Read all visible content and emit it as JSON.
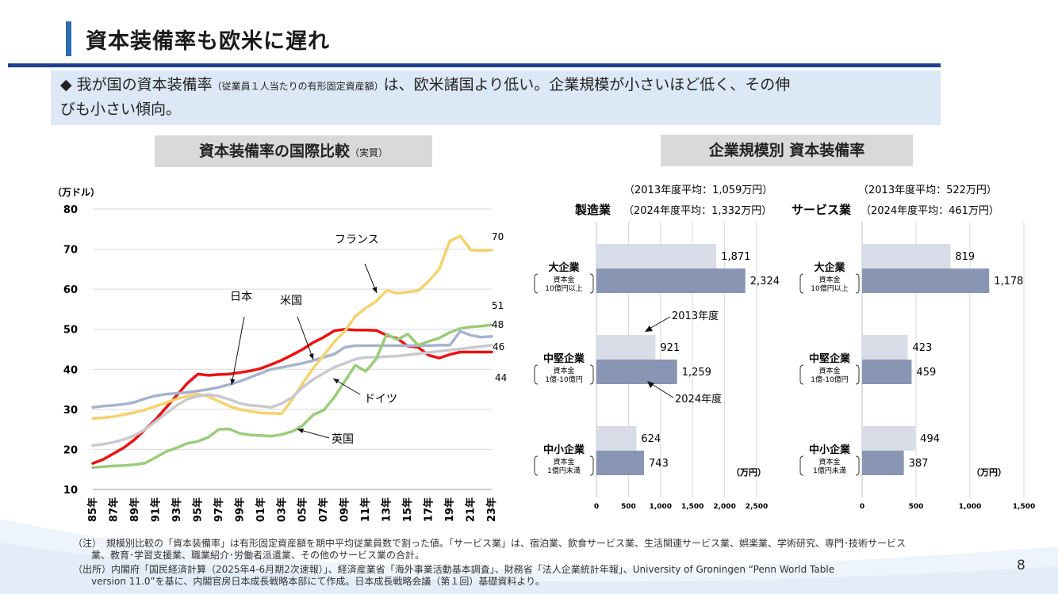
{
  "page": {
    "title": "資本装備率も欧米に遅れ",
    "summary_main": "◆ 我が国の資本装備率",
    "summary_small": "（従業員１人当たりの有形固定資産額）",
    "summary_rest": "は、欧米諸国より低い。企業規模が小さいほど低く、その伸",
    "summary_line2": "びも小さい傾向。",
    "left_subtitle": "資本装備率の国際比較",
    "left_subtitle_small": "（実質）",
    "right_subtitle": "企業規模別 資本装備率",
    "note1": "（注）　規模別比較の「資本装備率」は有形固定資産額を期中平均従業員数で割った値。「サービス業」は、宿泊業、飲食サービス業、生活関連サービス業、娯楽業、学術研究、専門･技術サービス",
    "note2": "業、教育･学習支援業、職業紹介･労働者派遣業、その他のサービス業の合計。",
    "note3": "（出所）内閣府「国民経済計算（2025年4-6月期2次速報）」、経済産業省「海外事業活動基本調査」、財務省「法人企業統計年報」、University of Groningen “Penn World Table",
    "note4": "version 11.0”を基に、内閣官房日本成長戦略本部にて作成。日本成長戦略会議（第１回）基礎資料より。",
    "page_number": "8",
    "colors": {
      "accent": "#1f3f8f",
      "title_bar": "#2b6cb0",
      "summary_bg": "#dce8f6",
      "subtitle_bg": "#d9d9d9"
    }
  },
  "chart_data": [
    {
      "type": "line",
      "ylabel": "（万ドル）",
      "ylim": [
        10,
        80
      ],
      "yticks": [
        10,
        20,
        30,
        40,
        50,
        60,
        70,
        80
      ],
      "x_ticklabels": [
        "85年",
        "87年",
        "89年",
        "91年",
        "93年",
        "95年",
        "97年",
        "99年",
        "01年",
        "03年",
        "05年",
        "07年",
        "09年",
        "11年",
        "13年",
        "15年",
        "17年",
        "19年",
        "21年",
        "23年"
      ],
      "x": [
        1985,
        1986,
        1987,
        1988,
        1989,
        1990,
        1991,
        1992,
        1993,
        1994,
        1995,
        1996,
        1997,
        1998,
        1999,
        2000,
        2001,
        2002,
        2003,
        2004,
        2005,
        2006,
        2007,
        2008,
        2009,
        2010,
        2011,
        2012,
        2013,
        2014,
        2015,
        2016,
        2017,
        2018,
        2019,
        2020,
        2021,
        2022,
        2023
      ],
      "grid": true,
      "series": [
        {
          "name": "日本",
          "color": "#ee1111",
          "end_label": "44",
          "values": [
            16.5,
            17.5,
            19,
            20.5,
            22.5,
            25,
            27.5,
            30.5,
            33.5,
            36.5,
            38.8,
            38.5,
            38.7,
            38.8,
            39.2,
            39.6,
            40.2,
            41.2,
            42.3,
            43.6,
            45,
            46.7,
            48,
            49.6,
            50,
            49.8,
            49.8,
            49.7,
            48.5,
            47.7,
            45.8,
            45.5,
            43.5,
            42.8,
            43.7,
            44.3,
            44.3,
            44.3,
            44.3
          ]
        },
        {
          "name": "米国",
          "color": "#a7b2cf",
          "end_label": "48",
          "values": [
            30.5,
            30.8,
            31,
            31.3,
            31.8,
            32.7,
            33.4,
            33.8,
            34,
            34.2,
            34.6,
            35,
            35.5,
            36.2,
            37,
            38,
            39,
            40,
            40.5,
            41,
            41.5,
            42.2,
            43,
            43.8,
            45.5,
            45.9,
            45.9,
            45.9,
            45.9,
            45.9,
            45.9,
            45.9,
            45.9,
            46,
            46,
            49.5,
            48.5,
            48,
            48.2
          ]
        },
        {
          "name": "フランス",
          "color": "#f5d26e",
          "end_label": "70",
          "values": [
            27.7,
            27.9,
            28.2,
            28.7,
            29.2,
            29.9,
            30.8,
            31.7,
            32.6,
            33.3,
            33.8,
            33.2,
            32,
            30.8,
            30,
            29.5,
            29.1,
            29,
            28.9,
            32.5,
            36.5,
            40.3,
            43.5,
            46.8,
            49.5,
            53.2,
            55.3,
            57,
            59.7,
            59,
            59.3,
            59.6,
            62,
            65,
            72,
            73.3,
            69.8,
            69.6,
            69.8
          ]
        },
        {
          "name": "ドイツ",
          "color": "#c9c9cf",
          "end_label": "46",
          "values": [
            21,
            21.3,
            21.8,
            22.5,
            23.5,
            25,
            27,
            29,
            31,
            32.5,
            33.3,
            33.7,
            33.3,
            32.5,
            31.5,
            31,
            30.8,
            30.5,
            31.5,
            33,
            35.5,
            37.5,
            39,
            40.5,
            41.5,
            42.5,
            43,
            43,
            43.2,
            43.3,
            43.6,
            43.9,
            44.2,
            44.5,
            44.8,
            45.1,
            45.4,
            45.7,
            46
          ]
        },
        {
          "name": "英国",
          "color": "#9acd7a",
          "end_label": "51",
          "values": [
            15.5,
            15.7,
            15.9,
            16,
            16.2,
            16.6,
            18,
            19.5,
            20.4,
            21.5,
            22,
            23,
            25,
            25.1,
            24,
            23.6,
            23.5,
            23.3,
            23.7,
            24.5,
            26,
            28.6,
            29.8,
            33,
            37,
            41,
            39.5,
            42.6,
            48.8,
            47.4,
            48.8,
            46,
            47,
            47.8,
            49.2,
            50.2,
            50.6,
            50.8,
            51.1
          ]
        }
      ],
      "annotations": [
        "フランス",
        "日本",
        "米国",
        "ドイツ",
        "英国"
      ]
    },
    {
      "type": "bar",
      "title": "製造業",
      "unit": "（万円）",
      "avg_2013": "（2013年度平均：1,059万円）",
      "avg_2024": "（2024年度平均：1,332万円）",
      "xlim": [
        0,
        2500
      ],
      "xticks": [
        0,
        500,
        1000,
        1500,
        2000,
        2500
      ],
      "xtick_labels": [
        "0",
        "500",
        "1,000",
        "1,500",
        "2,000",
        "2,500"
      ],
      "categories": [
        {
          "name": "大企業",
          "detail1": "資本金",
          "detail2": "10億円以上"
        },
        {
          "name": "中堅企業",
          "detail1": "資本金",
          "detail2": "1億-10億円"
        },
        {
          "name": "中小企業",
          "detail1": "資本金",
          "detail2": "1億円未満"
        }
      ],
      "series": [
        {
          "name": "2013年度",
          "color": "#d7dce6",
          "values": [
            1871,
            921,
            624
          ],
          "labels": [
            "1,871",
            "921",
            "624"
          ]
        },
        {
          "name": "2024年度",
          "color": "#8896b3",
          "values": [
            2324,
            1259,
            743
          ],
          "labels": [
            "2,324",
            "1,259",
            "743"
          ]
        }
      ]
    },
    {
      "type": "bar",
      "title": "サービス業",
      "unit": "（万円）",
      "avg_2013": "（2013年度平均：522万円）",
      "avg_2024": "（2024年度平均：461万円）",
      "xlim": [
        0,
        1500
      ],
      "xticks": [
        0,
        500,
        1000,
        1500
      ],
      "xtick_labels": [
        "0",
        "500",
        "1,000",
        "1,500"
      ],
      "categories": [
        {
          "name": "大企業",
          "detail1": "資本金",
          "detail2": "10億円以上"
        },
        {
          "name": "中堅企業",
          "detail1": "資本金",
          "detail2": "1億-10億円"
        },
        {
          "name": "中小企業",
          "detail1": "資本金",
          "detail2": "1億円未満"
        }
      ],
      "series": [
        {
          "name": "2013年度",
          "color": "#d7dce6",
          "values": [
            819,
            423,
            494
          ],
          "labels": [
            "819",
            "423",
            "494"
          ]
        },
        {
          "name": "2024年度",
          "color": "#8896b3",
          "values": [
            1178,
            459,
            387
          ],
          "labels": [
            "1,178",
            "459",
            "387"
          ]
        }
      ]
    }
  ]
}
